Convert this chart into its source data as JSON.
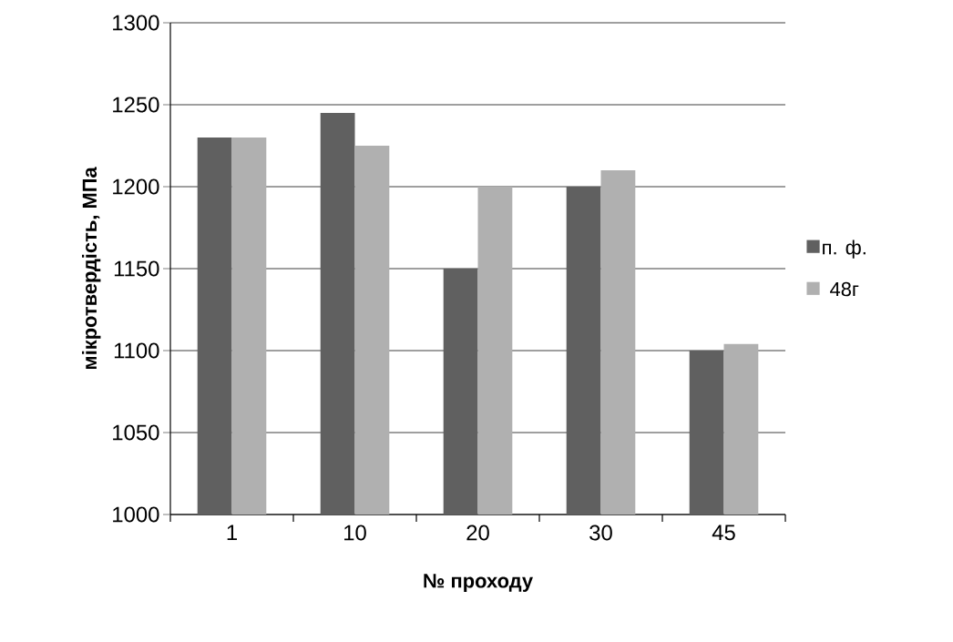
{
  "chart_data": {
    "type": "bar",
    "xlabel": "№ проходу",
    "ylabel": "мікротвердість, МПа",
    "categories": [
      "1",
      "10",
      "20",
      "30",
      "45"
    ],
    "series": [
      {
        "name": "п. ф.",
        "color": "#606060",
        "values": [
          1230,
          1245,
          1150,
          1200,
          1100
        ]
      },
      {
        "name": "48г",
        "color": "#b0b0b0",
        "values": [
          1230,
          1225,
          1200,
          1210,
          1104
        ]
      }
    ],
    "ylim": [
      1000,
      1300
    ],
    "yticks": [
      1000,
      1050,
      1100,
      1150,
      1200,
      1250,
      1300
    ],
    "grid": "y",
    "legend": "right"
  }
}
